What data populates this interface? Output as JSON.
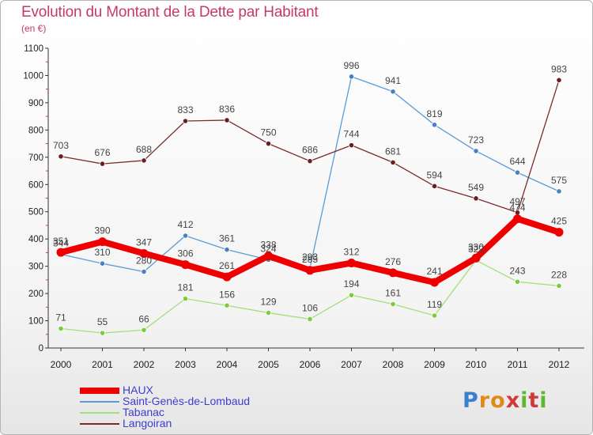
{
  "title": "Evolution du Montant de la Dette par Habitant",
  "subtitle": "(en €)",
  "brand": {
    "letters": [
      "P",
      "r",
      "o",
      "x",
      "i",
      "t",
      "i"
    ],
    "colors": [
      "#3a7fd0",
      "#e08a1a",
      "#e08a1a",
      "#d23a3a",
      "#5cb82e",
      "#d23a3a",
      "#5cb82e"
    ]
  },
  "chart_data": {
    "type": "line",
    "x": [
      "2000",
      "2001",
      "2002",
      "2003",
      "2004",
      "2005",
      "2006",
      "2007",
      "2008",
      "2009",
      "2010",
      "2011",
      "2012"
    ],
    "ylim": [
      0,
      1100
    ],
    "yticks": [
      0,
      100,
      200,
      300,
      400,
      500,
      600,
      700,
      800,
      900,
      1000,
      1100
    ],
    "grid": false,
    "legend_position": "bottom-left",
    "series": [
      {
        "name": "HAUX",
        "color": "#ee0000",
        "marker_color": "#ee0000",
        "values": [
          351,
          390,
          347,
          306,
          261,
          338,
          285,
          312,
          276,
          241,
          330,
          474,
          425
        ]
      },
      {
        "name": "Saint-Genès-de-Lombaud",
        "color": "#5b9bd5",
        "marker_color": "#4a7fc0",
        "values": [
          344,
          310,
          280,
          412,
          361,
          324,
          293,
          996,
          941,
          819,
          723,
          644,
          575
        ]
      },
      {
        "name": "Tabanac",
        "color": "#a3e07a",
        "marker_color": "#7ecb3a",
        "values": [
          71,
          55,
          66,
          181,
          156,
          129,
          106,
          194,
          161,
          119,
          322,
          243,
          228
        ]
      },
      {
        "name": "Langoiran",
        "color": "#7a2b2b",
        "marker_color": "#6a1f1f",
        "values": [
          703,
          676,
          688,
          833,
          836,
          750,
          686,
          744,
          681,
          594,
          549,
          497,
          983
        ]
      }
    ]
  }
}
